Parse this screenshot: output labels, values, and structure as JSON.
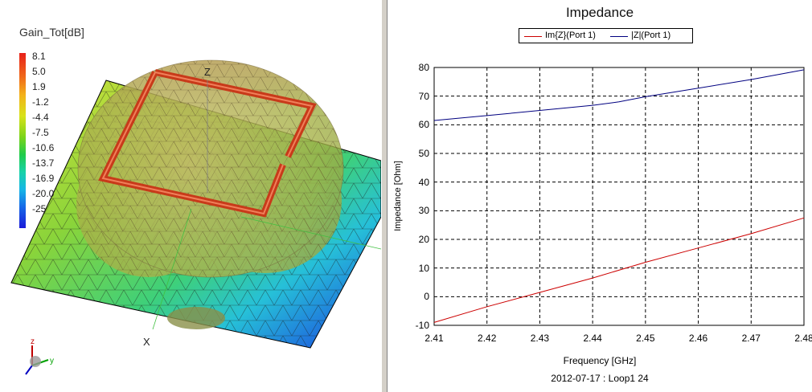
{
  "left_panel": {
    "legend_title": "Gain_Tot[dB]",
    "scale_labels": [
      "8.1",
      "5.0",
      "1.9",
      "-1.2",
      "-4.4",
      "-7.5",
      "-10.6",
      "-13.7",
      "-16.9",
      "-20.0",
      "-25"
    ],
    "axis_labels": {
      "z": "Z",
      "x": "X"
    }
  },
  "chart_data": {
    "type": "line",
    "title": "Impedance",
    "xlabel": "Frequency [GHz]",
    "ylabel": "Impedance [Ohm]",
    "xlim": [
      2.41,
      2.48
    ],
    "ylim": [
      -10,
      80
    ],
    "xticks": [
      "2.41",
      "2.42",
      "2.43",
      "2.44",
      "2.45",
      "2.46",
      "2.47",
      "2.48"
    ],
    "yticks": [
      "80",
      "70",
      "60",
      "50",
      "40",
      "30",
      "20",
      "10",
      "0",
      "-10"
    ],
    "grid": true,
    "legend_position": "top",
    "footer": "2012-07-17 : Loop1 24",
    "series": [
      {
        "name": "Im{Z}(Port 1)",
        "color": "#cc0000",
        "x": [
          2.41,
          2.42,
          2.43,
          2.44,
          2.45,
          2.46,
          2.47,
          2.48
        ],
        "y": [
          -9,
          -3.5,
          1.5,
          6.5,
          12,
          17,
          22,
          27.5
        ]
      },
      {
        "name": "|Z|(Port 1)",
        "color": "#000080",
        "x": [
          2.41,
          2.42,
          2.43,
          2.44,
          2.445,
          2.45,
          2.46,
          2.47,
          2.48
        ],
        "y": [
          61.5,
          63.2,
          65,
          66.8,
          68,
          69.8,
          72.8,
          75.8,
          79.2
        ]
      }
    ]
  }
}
